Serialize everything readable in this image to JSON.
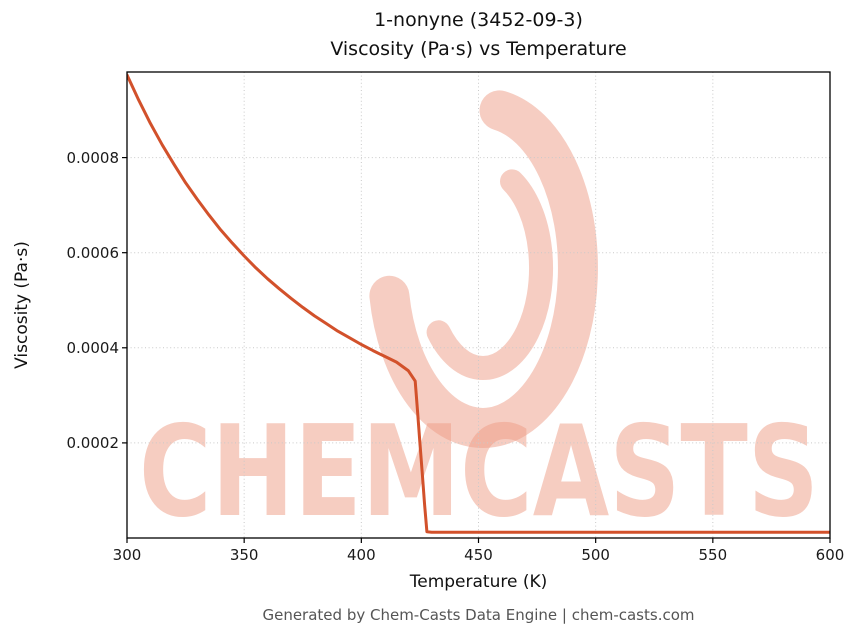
{
  "header": {
    "title_line1": "1-nonyne (3452-09-3)",
    "title_line2": "Viscosity (Pa·s) vs Temperature"
  },
  "axes": {
    "x_label": "Temperature (K)",
    "y_label": "Viscosity (Pa·s)"
  },
  "footer": {
    "text": "Generated by Chem-Casts Data Engine | chem-casts.com"
  },
  "watermark": {
    "text": "CHEMCASTS"
  },
  "colors": {
    "line": "#d2512b",
    "watermark": "#ee9c85",
    "grid": "#c9c9c9",
    "axis": "#000000",
    "tick_text": "#1a1a1a",
    "footer_text": "#555555"
  },
  "chart_data": {
    "type": "line",
    "title": "1-nonyne (3452-09-3) — Viscosity (Pa·s) vs Temperature",
    "xlabel": "Temperature (K)",
    "ylabel": "Viscosity (Pa·s)",
    "xlim": [
      300,
      600
    ],
    "ylim": [
      0,
      0.00098
    ],
    "x_ticks": [
      300,
      350,
      400,
      450,
      500,
      550,
      600
    ],
    "y_ticks": [
      0.0002,
      0.0004,
      0.0006,
      0.0008
    ],
    "grid": true,
    "legend": "none",
    "x": [
      300,
      305,
      310,
      315,
      320,
      325,
      330,
      335,
      340,
      345,
      350,
      355,
      360,
      365,
      370,
      375,
      380,
      385,
      390,
      395,
      400,
      405,
      410,
      415,
      420,
      423,
      424,
      425,
      426,
      427,
      428,
      430,
      440,
      450,
      460,
      470,
      480,
      490,
      500,
      510,
      520,
      530,
      540,
      550,
      560,
      570,
      580,
      590,
      600
    ],
    "series": [
      {
        "name": "viscosity",
        "values": [
          0.000974,
          0.000921,
          0.000872,
          0.000827,
          0.000786,
          0.000747,
          0.000712,
          0.000679,
          0.000648,
          0.00062,
          0.000593,
          0.000568,
          0.000545,
          0.000524,
          0.000504,
          0.000485,
          0.000467,
          0.000451,
          0.000435,
          0.000421,
          0.000407,
          0.000394,
          0.000382,
          0.00037,
          0.000352,
          0.00033,
          0.000265,
          0.0002,
          0.000135,
          7e-05,
          1.3e-05,
          1.2e-05,
          1.2e-05,
          1.2e-05,
          1.2e-05,
          1.2e-05,
          1.2e-05,
          1.2e-05,
          1.2e-05,
          1.2e-05,
          1.2e-05,
          1.2e-05,
          1.2e-05,
          1.2e-05,
          1.2e-05,
          1.2e-05,
          1.2e-05,
          1.2e-05,
          1.2e-05
        ]
      }
    ]
  }
}
